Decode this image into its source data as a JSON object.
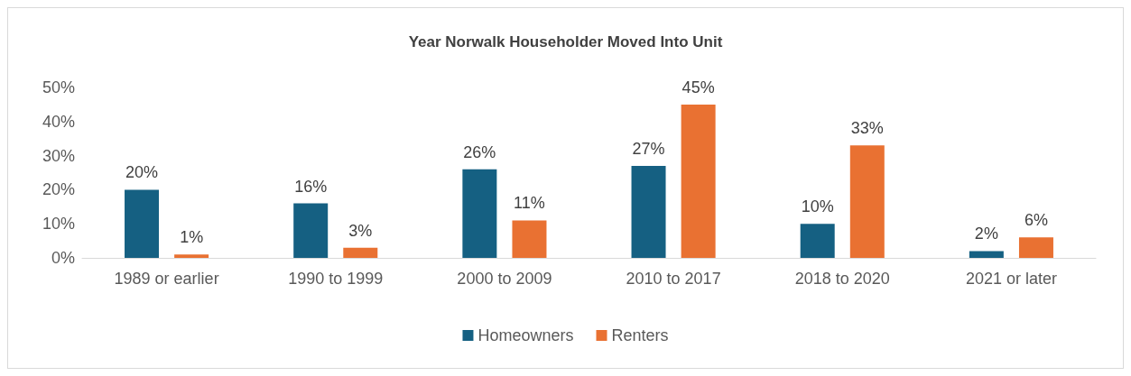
{
  "chart_data": {
    "type": "bar",
    "title": "Year Norwalk Householder Moved Into Unit",
    "categories": [
      "1989 or earlier",
      "1990 to 1999",
      "2000 to 2009",
      "2010 to 2017",
      "2018 to 2020",
      "2021 or later"
    ],
    "series": [
      {
        "name": "Homeowners",
        "color": "#156082",
        "values": [
          20,
          16,
          26,
          27,
          10,
          2
        ],
        "value_labels": [
          "20%",
          "16%",
          "26%",
          "27%",
          "10%",
          "2%"
        ]
      },
      {
        "name": "Renters",
        "color": "#e97132",
        "values": [
          1,
          3,
          11,
          45,
          33,
          6
        ],
        "value_labels": [
          "1%",
          "3%",
          "11%",
          "45%",
          "33%",
          "6%"
        ]
      }
    ],
    "ylim": [
      0,
      50
    ],
    "yticks": [
      {
        "value": 0,
        "label": "0%"
      },
      {
        "value": 10,
        "label": "10%"
      },
      {
        "value": 20,
        "label": "20%"
      },
      {
        "value": 30,
        "label": "30%"
      },
      {
        "value": 40,
        "label": "40%"
      },
      {
        "value": 50,
        "label": "50%"
      }
    ],
    "grid": false,
    "legend": "bottom"
  }
}
